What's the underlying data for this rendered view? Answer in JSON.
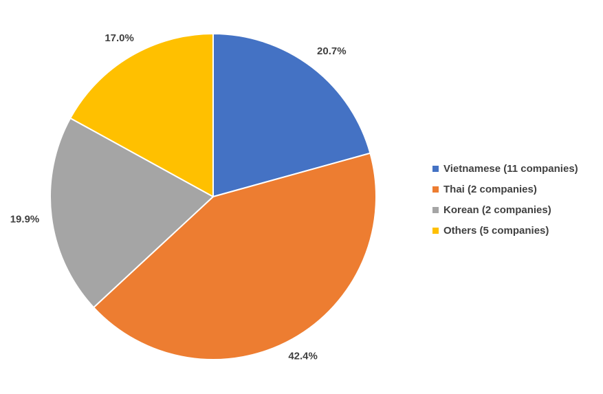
{
  "chart_data": {
    "type": "pie",
    "title": "",
    "categories": [
      "Vietnamese (11 companies)",
      "Thai (2 companies)",
      "Korean (2 companies)",
      "Others (5 companies)"
    ],
    "values": [
      20.7,
      42.4,
      19.9,
      17.0
    ],
    "data_labels": [
      "20.7%",
      "42.4%",
      "19.9%",
      "17.0%"
    ],
    "colors": [
      "#4472C4",
      "#ED7D31",
      "#A5A5A5",
      "#FFC000"
    ],
    "start_angle": "12 o'clock",
    "direction": "clockwise",
    "legend_position": "right"
  }
}
